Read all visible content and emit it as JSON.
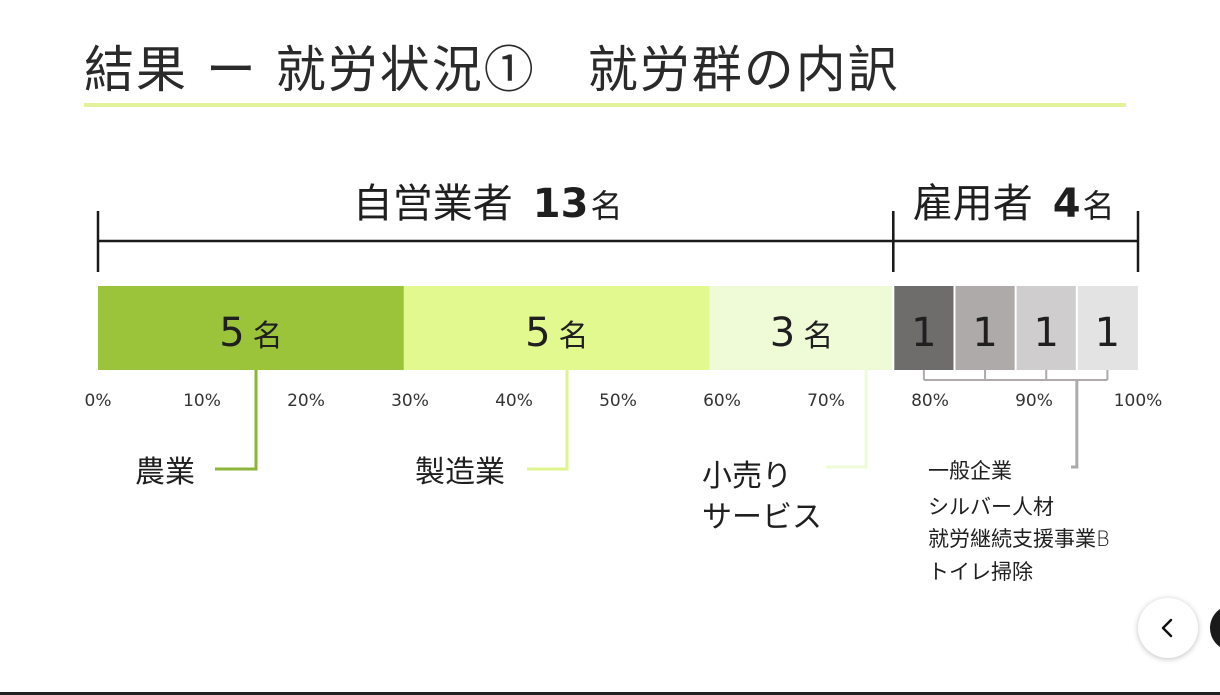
{
  "title": "結果 ー 就労状況①　就労群の内訳",
  "chart_data": {
    "type": "bar",
    "orientation": "horizontal-stacked-100",
    "groups": [
      {
        "label": "自営業者",
        "count": "13",
        "unit": "名",
        "from": 0,
        "to": 76.47
      },
      {
        "label": "雇用者",
        "count": "4",
        "unit": "名",
        "from": 76.47,
        "to": 100
      }
    ],
    "segments": [
      {
        "value": 5,
        "text": "5",
        "unit": "名",
        "color": "#9cc43b",
        "text_color": "#1f1f1f"
      },
      {
        "value": 5,
        "text": "5",
        "unit": "名",
        "color": "#e1f98f",
        "text_color": "#1f1f1f"
      },
      {
        "value": 3,
        "text": "3",
        "unit": "名",
        "color": "#eefbd6",
        "text_color": "#1f1f1f"
      },
      {
        "value": 1,
        "text": "1",
        "unit": "",
        "color": "#6f6c6c",
        "text_color": "#1f1f1f"
      },
      {
        "value": 1,
        "text": "1",
        "unit": "",
        "color": "#aeaaaa",
        "text_color": "#1f1f1f"
      },
      {
        "value": 1,
        "text": "1",
        "unit": "",
        "color": "#cfcdcd",
        "text_color": "#1f1f1f"
      },
      {
        "value": 1,
        "text": "1",
        "unit": "",
        "color": "#e4e3e3",
        "text_color": "#1f1f1f"
      }
    ],
    "x_ticks": [
      "0%",
      "10%",
      "20%",
      "30%",
      "40%",
      "50%",
      "60%",
      "70%",
      "80%",
      "90%",
      "100%"
    ],
    "xlim": [
      0,
      100
    ],
    "callouts": [
      {
        "lines": [
          "農業"
        ],
        "color": "#8db53a"
      },
      {
        "lines": [
          "製造業"
        ],
        "color": "#dff38e"
      },
      {
        "lines": [
          "小売り",
          "サービス"
        ],
        "color": "#eefbd6"
      },
      {
        "lines": [
          "一般企業",
          "シルバー人材",
          "就労継続支援事業B",
          "トイレ掃除"
        ],
        "color": "#aeaaaa"
      }
    ]
  }
}
